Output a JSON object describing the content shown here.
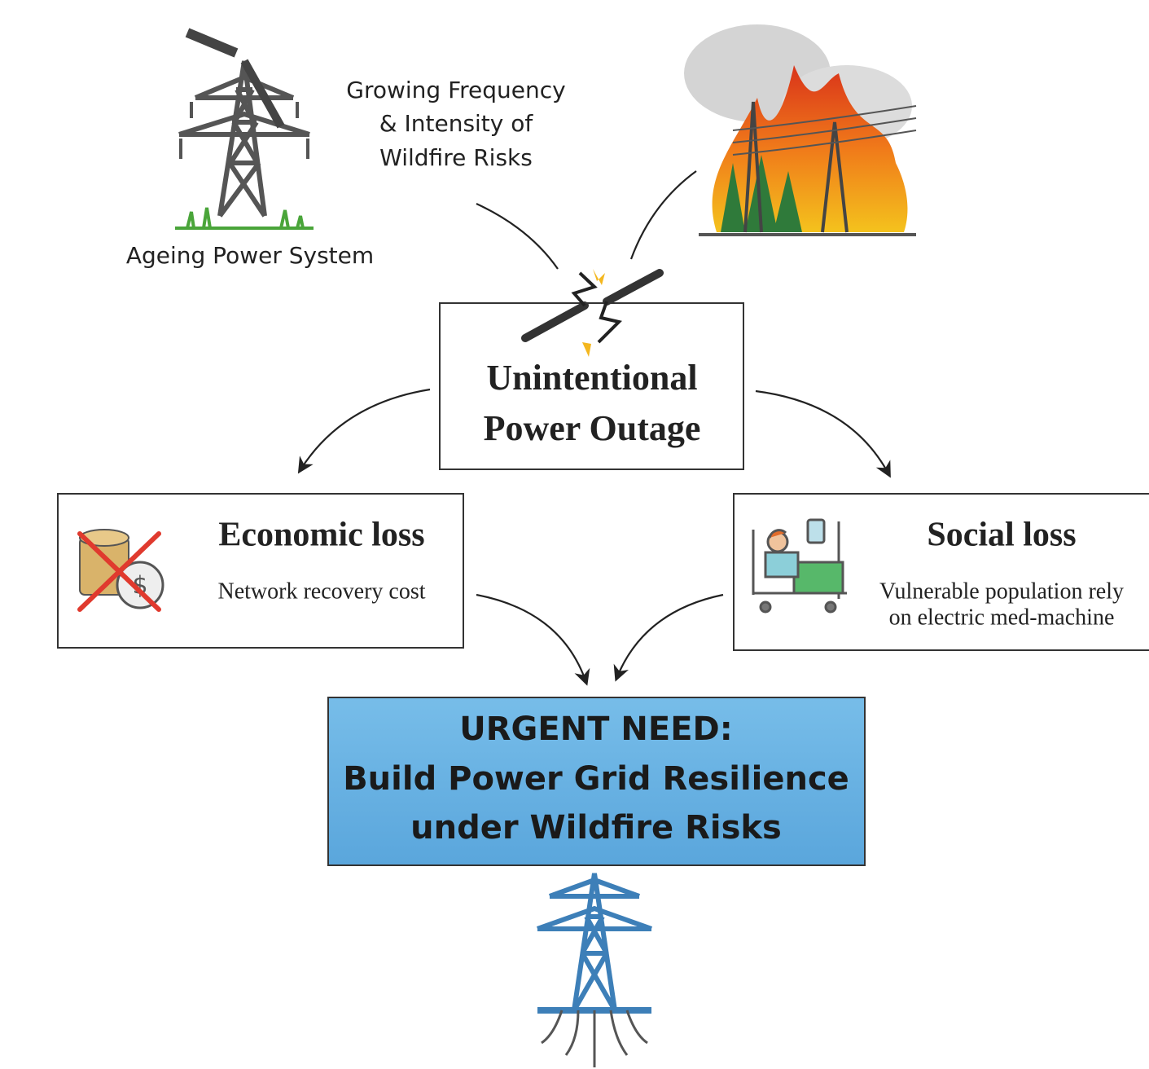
{
  "nodes": [
    {
      "label": "Ageing Power System"
    },
    {
      "lines": [
        "Growing Frequency",
        "& Intensity of",
        "Wildfire Risks"
      ]
    },
    {
      "lines": [
        "Unintentional",
        "Power Outage"
      ]
    },
    {
      "title": "Economic loss",
      "lines": [
        "Network recovery cost"
      ]
    },
    {
      "title": "Social loss",
      "lines": [
        "Vulnerable population rely",
        "on electric med-machine"
      ]
    },
    {
      "lines": [
        "URGENT NEED:",
        "Build Power Grid Resilience",
        "under Wildfire Risks"
      ]
    }
  ]
}
